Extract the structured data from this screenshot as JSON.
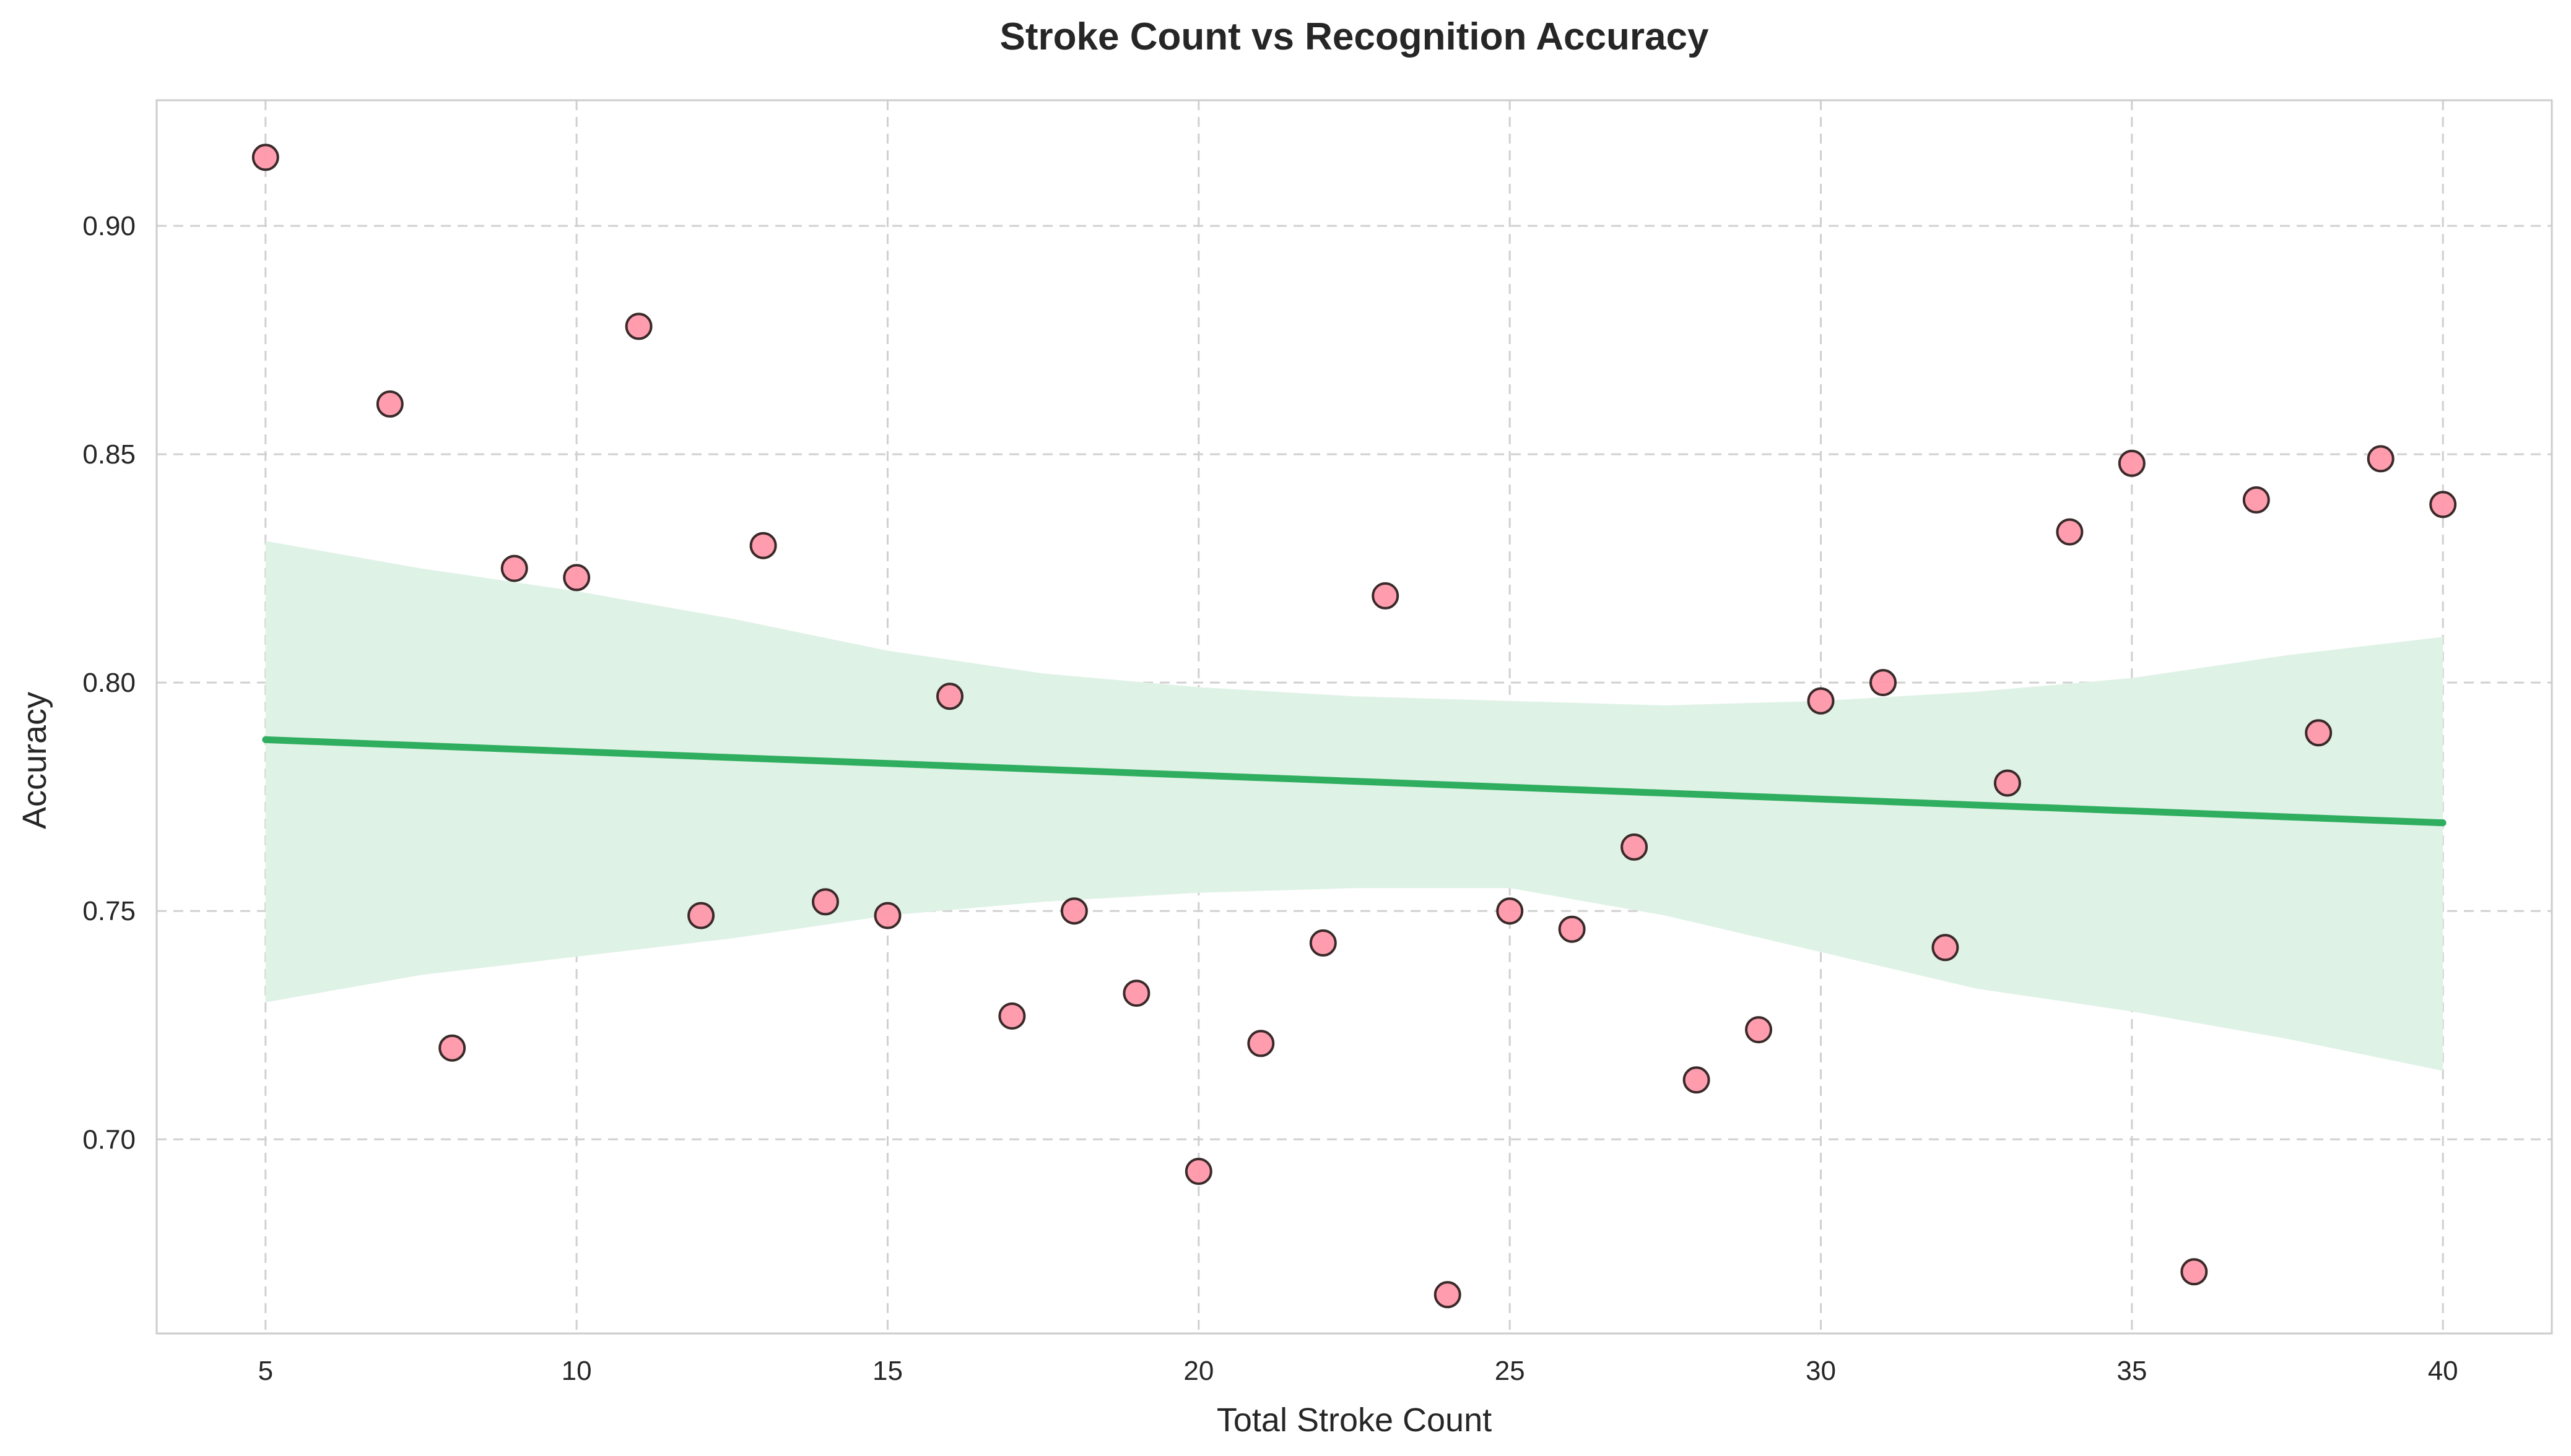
{
  "chart_data": {
    "type": "scatter",
    "title": "Stroke Count vs Recognition Accuracy",
    "xlabel": "Total Stroke Count",
    "ylabel": "Accuracy",
    "xlim": [
      3.25,
      41.75
    ],
    "ylim": [
      0.6575,
      0.9275
    ],
    "xticks": [
      5,
      10,
      15,
      20,
      25,
      30,
      35,
      40
    ],
    "yticks": [
      0.7,
      0.75,
      0.8,
      0.85,
      0.9
    ],
    "grid": true,
    "points": {
      "x": [
        5,
        7,
        8,
        9,
        10,
        11,
        12,
        13,
        14,
        15,
        16,
        17,
        18,
        19,
        20,
        21,
        22,
        23,
        24,
        25,
        26,
        27,
        28,
        29,
        30,
        31,
        32,
        33,
        34,
        35,
        36,
        37,
        38,
        39,
        40
      ],
      "y": [
        0.915,
        0.861,
        0.72,
        0.825,
        0.823,
        0.878,
        0.749,
        0.83,
        0.752,
        0.749,
        0.797,
        0.727,
        0.75,
        0.732,
        0.693,
        0.721,
        0.743,
        0.819,
        0.666,
        0.75,
        0.746,
        0.764,
        0.713,
        0.724,
        0.796,
        0.8,
        0.742,
        0.778,
        0.833,
        0.848,
        0.671,
        0.84,
        0.789,
        0.849,
        0.839
      ]
    },
    "trend": {
      "x": [
        5,
        40
      ],
      "y": [
        0.7875,
        0.7693
      ]
    },
    "confidence_band": {
      "x": [
        5,
        7.5,
        10,
        12.5,
        15,
        17.5,
        20,
        22.5,
        25,
        27.5,
        30,
        32.5,
        35,
        37.5,
        40
      ],
      "upper": [
        0.831,
        0.825,
        0.82,
        0.814,
        0.807,
        0.802,
        0.799,
        0.797,
        0.796,
        0.795,
        0.796,
        0.798,
        0.801,
        0.806,
        0.81
      ],
      "lower": [
        0.73,
        0.736,
        0.74,
        0.744,
        0.749,
        0.752,
        0.754,
        0.755,
        0.755,
        0.749,
        0.741,
        0.733,
        0.728,
        0.722,
        0.715
      ]
    },
    "colors": {
      "point_fill": "#ff96a8",
      "point_edge": "#3a2a2a",
      "trend": "#2fae5f",
      "band": "#dff2e6"
    }
  }
}
